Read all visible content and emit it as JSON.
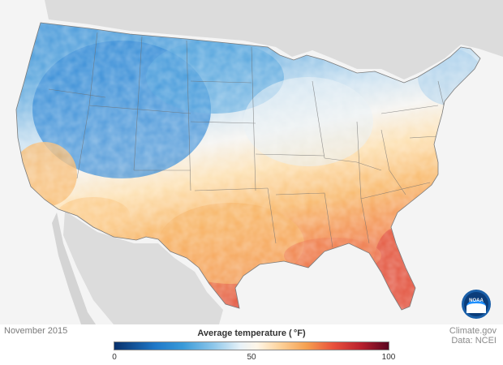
{
  "map": {
    "date": "November 2015",
    "legend": {
      "title": "Average temperature ( °F)",
      "ticks": [
        "0",
        "50",
        "100"
      ],
      "min": 0,
      "max": 100
    },
    "credit": {
      "line1": "Climate.gov",
      "line2": "Data: NCEI"
    },
    "logo_text": "NOAA",
    "colors": {
      "cold": "#1f78c8",
      "neutral": "#f2f6f8",
      "warm": "#f5a050",
      "hot": "#e8503c",
      "surround": "#dcdcdc"
    }
  }
}
